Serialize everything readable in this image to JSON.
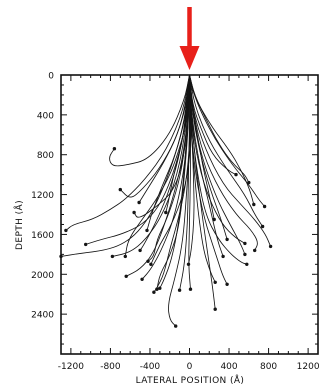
{
  "chart_data": {
    "type": "line",
    "title": "",
    "xlabel": "LATERAL POSITION (Å)",
    "ylabel": "DEPTH (Å)",
    "xlim": [
      -1300,
      1300
    ],
    "ylim": [
      2800,
      0
    ],
    "y_inverted": true,
    "grid": false,
    "xticks": [
      -1200,
      -800,
      -400,
      0,
      400,
      800,
      1200
    ],
    "xtick_labels": [
      "-1200",
      "-800",
      "-400",
      "0",
      "400",
      "800",
      "1200"
    ],
    "yticks": [
      0,
      400,
      800,
      1200,
      1600,
      2000,
      2400
    ],
    "ytick_labels": [
      "0",
      "400",
      "800",
      "1200",
      "1600",
      "2000",
      "2400"
    ],
    "incident_arrow": {
      "x": 0,
      "color": "#e8201a"
    },
    "line_color": "#151515",
    "series": [
      {
        "x": [
          0,
          -10,
          -40,
          -110,
          -230,
          -330,
          -360,
          -420
        ],
        "y": [
          0,
          300,
          700,
          1100,
          1450,
          1650,
          1820,
          1870
        ]
      },
      {
        "x": [
          0,
          20,
          10,
          -60,
          -180,
          -300,
          -390
        ],
        "y": [
          0,
          350,
          800,
          1200,
          1500,
          1700,
          1900
        ]
      },
      {
        "x": [
          0,
          -30,
          -140,
          -310,
          -480,
          -600,
          -700
        ],
        "y": [
          0,
          300,
          650,
          950,
          1150,
          1250,
          1150
        ]
      },
      {
        "x": [
          0,
          -50,
          -200,
          -420,
          -620,
          -780,
          -820,
          -760
        ],
        "y": [
          0,
          250,
          600,
          850,
          900,
          920,
          830,
          740
        ]
      },
      {
        "x": [
          0,
          -20,
          -130,
          -290,
          -470,
          -690,
          -890,
          -1050
        ],
        "y": [
          0,
          400,
          900,
          1300,
          1500,
          1600,
          1650,
          1700
        ]
      },
      {
        "x": [
          0,
          -60,
          -230,
          -450,
          -650,
          -800,
          -980,
          -1180,
          -1250
        ],
        "y": [
          0,
          350,
          750,
          1050,
          1250,
          1350,
          1450,
          1500,
          1560
        ]
      },
      {
        "x": [
          0,
          -40,
          -190,
          -360,
          -520,
          -680,
          -860,
          -1110,
          -1300
        ],
        "y": [
          0,
          450,
          950,
          1350,
          1580,
          1700,
          1760,
          1790,
          1820
        ]
      },
      {
        "x": [
          0,
          -20,
          -100,
          -250,
          -370,
          -500,
          -640
        ],
        "y": [
          0,
          500,
          1000,
          1500,
          1800,
          1950,
          2020
        ]
      },
      {
        "x": [
          0,
          -10,
          -60,
          -160,
          -280,
          -390,
          -480
        ],
        "y": [
          0,
          500,
          1000,
          1450,
          1750,
          1950,
          2050
        ]
      },
      {
        "x": [
          0,
          -30,
          -120,
          -270,
          -440,
          -600,
          -780
        ],
        "y": [
          0,
          500,
          1000,
          1400,
          1650,
          1780,
          1820
        ]
      },
      {
        "x": [
          0,
          -20,
          -150,
          -300,
          -480,
          -620,
          -650
        ],
        "y": [
          0,
          450,
          900,
          1200,
          1450,
          1650,
          1820
        ]
      },
      {
        "x": [
          0,
          -10,
          -50,
          -100,
          -190,
          -300,
          -330
        ],
        "y": [
          0,
          500,
          1000,
          1500,
          1800,
          2000,
          2150
        ]
      },
      {
        "x": [
          0,
          10,
          -20,
          -100,
          -200,
          -260,
          -320,
          -360
        ],
        "y": [
          0,
          500,
          1000,
          1400,
          1750,
          2000,
          2120,
          2180
        ]
      },
      {
        "x": [
          0,
          -20,
          -60,
          -110,
          -180,
          -260,
          -300
        ],
        "y": [
          0,
          500,
          1050,
          1500,
          1850,
          2060,
          2140
        ]
      },
      {
        "x": [
          0,
          0,
          -10,
          -20,
          -50,
          -100
        ],
        "y": [
          0,
          500,
          1000,
          1500,
          1900,
          2160
        ]
      },
      {
        "x": [
          0,
          10,
          -30,
          -70,
          -150,
          -220,
          -200,
          -140
        ],
        "y": [
          0,
          600,
          1200,
          1700,
          2050,
          2300,
          2460,
          2520
        ]
      },
      {
        "x": [
          0,
          -20,
          -50,
          -150,
          -330,
          -520,
          -560
        ],
        "y": [
          0,
          400,
          800,
          1150,
          1320,
          1450,
          1380
        ]
      },
      {
        "x": [
          0,
          -40,
          -120,
          -260,
          -410,
          -510
        ],
        "y": [
          0,
          300,
          600,
          880,
          1120,
          1280
        ]
      },
      {
        "x": [
          0,
          -30,
          -80,
          -160,
          -210,
          -240
        ],
        "y": [
          0,
          400,
          700,
          1000,
          1260,
          1380
        ]
      },
      {
        "x": [
          0,
          10,
          10,
          0,
          -10,
          10
        ],
        "y": [
          0,
          500,
          1000,
          1500,
          1900,
          2150
        ]
      },
      {
        "x": [
          0,
          20,
          40,
          50,
          20,
          -10
        ],
        "y": [
          0,
          500,
          1000,
          1400,
          1750,
          1900
        ]
      },
      {
        "x": [
          0,
          20,
          100,
          200,
          280,
          340
        ],
        "y": [
          0,
          400,
          900,
          1300,
          1650,
          1820
        ]
      },
      {
        "x": [
          0,
          10,
          60,
          150,
          260,
          330,
          380
        ],
        "y": [
          0,
          500,
          1000,
          1450,
          1780,
          2000,
          2100
        ]
      },
      {
        "x": [
          0,
          20,
          80,
          160,
          290,
          420,
          520,
          580
        ],
        "y": [
          0,
          500,
          1000,
          1400,
          1650,
          1800,
          1880,
          1900
        ]
      },
      {
        "x": [
          0,
          30,
          130,
          280,
          410,
          520,
          560
        ],
        "y": [
          0,
          400,
          850,
          1250,
          1500,
          1700,
          1800
        ]
      },
      {
        "x": [
          0,
          40,
          140,
          300,
          470,
          620,
          700,
          660
        ],
        "y": [
          0,
          400,
          800,
          1150,
          1400,
          1550,
          1680,
          1760
        ]
      },
      {
        "x": [
          0,
          30,
          160,
          340,
          520,
          660,
          770,
          820
        ],
        "y": [
          0,
          350,
          750,
          1100,
          1300,
          1450,
          1600,
          1720
        ]
      },
      {
        "x": [
          0,
          50,
          190,
          380,
          560,
          660,
          740
        ],
        "y": [
          0,
          300,
          650,
          950,
          1200,
          1400,
          1520
        ]
      },
      {
        "x": [
          0,
          60,
          230,
          430,
          600,
          700,
          760
        ],
        "y": [
          0,
          250,
          600,
          900,
          1100,
          1250,
          1320
        ]
      },
      {
        "x": [
          0,
          40,
          210,
          400,
          520,
          610,
          650
        ],
        "y": [
          0,
          200,
          500,
          750,
          950,
          1150,
          1300
        ]
      },
      {
        "x": [
          0,
          50,
          170,
          300,
          430,
          560,
          600
        ],
        "y": [
          0,
          200,
          450,
          700,
          880,
          1000,
          1080
        ]
      },
      {
        "x": [
          0,
          30,
          120,
          230,
          380,
          470
        ],
        "y": [
          0,
          300,
          550,
          800,
          950,
          1000
        ]
      },
      {
        "x": [
          0,
          20,
          80,
          130,
          200,
          250
        ],
        "y": [
          0,
          300,
          600,
          900,
          1200,
          1450
        ]
      },
      {
        "x": [
          0,
          30,
          110,
          210,
          320,
          380
        ],
        "y": [
          0,
          400,
          800,
          1150,
          1450,
          1650
        ]
      },
      {
        "x": [
          0,
          10,
          50,
          90,
          140,
          200,
          260
        ],
        "y": [
          0,
          500,
          1000,
          1400,
          1750,
          1950,
          2080
        ]
      },
      {
        "x": [
          0,
          20,
          90,
          200,
          330,
          460,
          560
        ],
        "y": [
          0,
          450,
          900,
          1250,
          1500,
          1630,
          1690
        ]
      },
      {
        "x": [
          0,
          30,
          100,
          170,
          230,
          260
        ],
        "y": [
          0,
          600,
          1200,
          1700,
          2100,
          2350
        ]
      },
      {
        "x": [
          0,
          -40,
          -110,
          -220,
          -340,
          -460,
          -500
        ],
        "y": [
          0,
          450,
          850,
          1200,
          1480,
          1700,
          1760
        ]
      },
      {
        "x": [
          0,
          -40,
          -140,
          -280,
          -380,
          -430
        ],
        "y": [
          0,
          400,
          800,
          1120,
          1380,
          1560
        ]
      }
    ]
  }
}
